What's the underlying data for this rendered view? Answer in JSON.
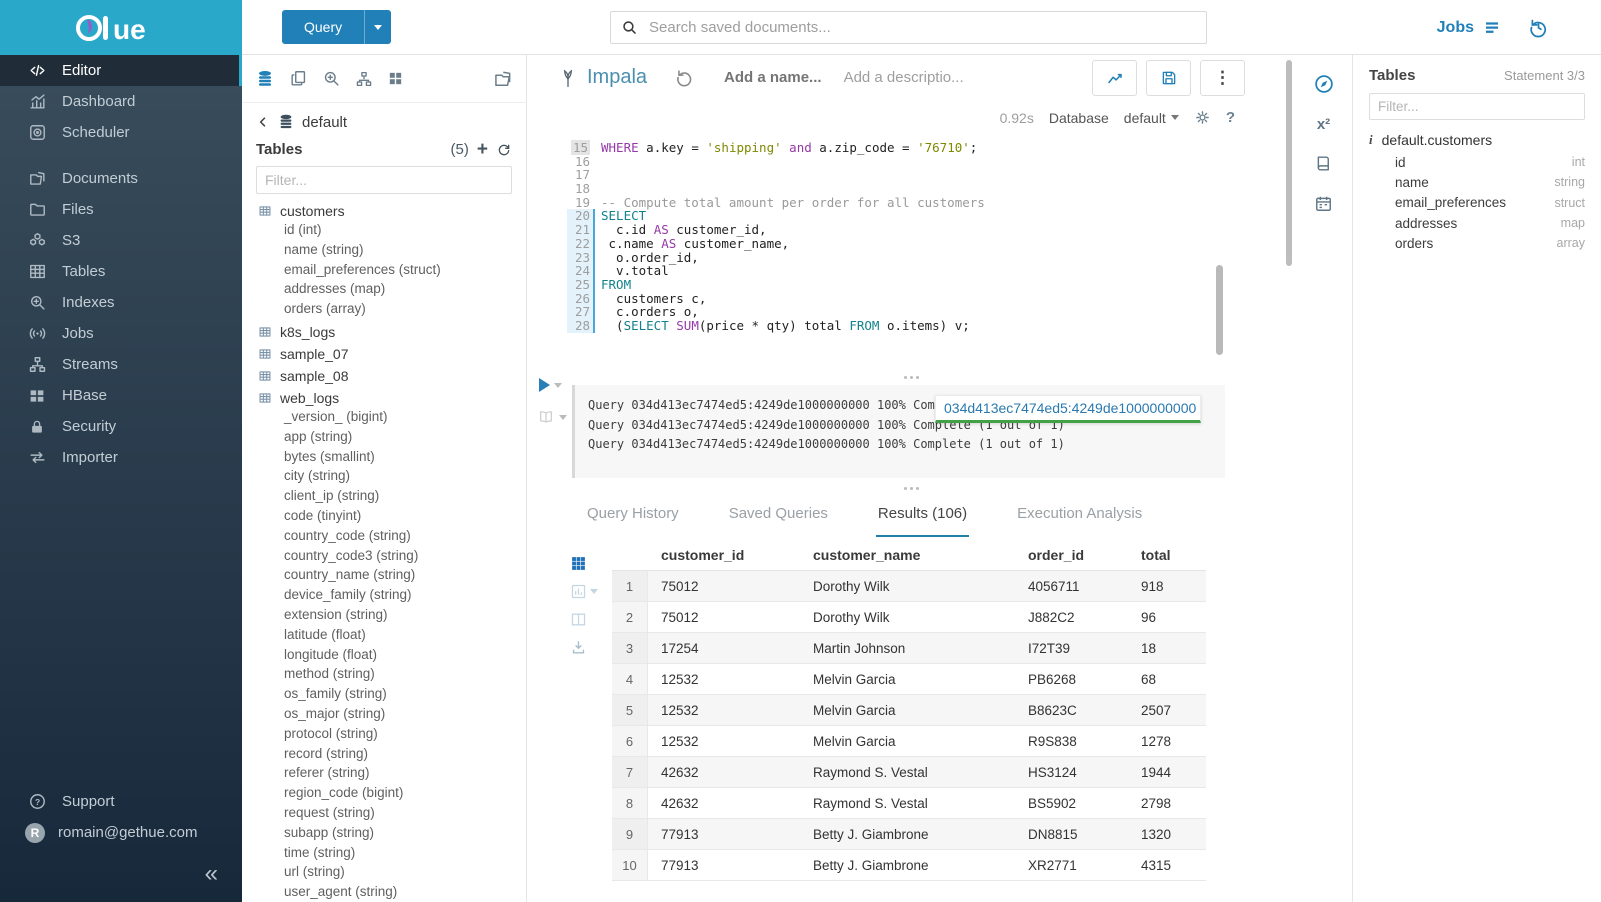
{
  "colors": {
    "accent": "#29a8c9",
    "blue": "#2180b8",
    "tab_underline": "#2180a8",
    "keyword_teal": "#12838c",
    "keyword_violet": "#9639a8",
    "string_olive": "#7d8a00",
    "popover_link": "#2a79af",
    "popover_underline": "#43a047"
  },
  "topbar": {
    "logo_text": "ue",
    "query_button": "Query",
    "search_placeholder": "Search saved documents...",
    "jobs_label": "Jobs"
  },
  "sidebar": {
    "items": [
      {
        "label": "Editor",
        "icon": "code-icon",
        "active": true
      },
      {
        "label": "Dashboard",
        "icon": "dashboard-icon"
      },
      {
        "label": "Scheduler",
        "icon": "scheduler-icon"
      },
      {
        "label": "Documents",
        "icon": "documents-icon",
        "gap": true
      },
      {
        "label": "Files",
        "icon": "files-icon"
      },
      {
        "label": "S3",
        "icon": "s3-icon"
      },
      {
        "label": "Tables",
        "icon": "tables-icon"
      },
      {
        "label": "Indexes",
        "icon": "indexes-icon"
      },
      {
        "label": "Jobs",
        "icon": "jobs-icon"
      },
      {
        "label": "Streams",
        "icon": "streams-icon"
      },
      {
        "label": "HBase",
        "icon": "hbase-icon"
      },
      {
        "label": "Security",
        "icon": "security-icon"
      },
      {
        "label": "Importer",
        "icon": "importer-icon"
      }
    ],
    "footer": [
      {
        "label": "Support",
        "icon": "help-icon"
      },
      {
        "label": "romain@gethue.com",
        "icon": "avatar",
        "avatar_letter": "R"
      }
    ],
    "collapse_glyph": "«"
  },
  "left_assist": {
    "database": "default",
    "tables_label": "Tables",
    "tables_count": "(5)",
    "filter_placeholder": "Filter...",
    "tables": [
      {
        "name": "customers",
        "columns": [
          "id (int)",
          "name (string)",
          "email_preferences (struct)",
          "addresses (map)",
          "orders (array)"
        ]
      },
      {
        "name": "k8s_logs",
        "columns": []
      },
      {
        "name": "sample_07",
        "columns": []
      },
      {
        "name": "sample_08",
        "columns": []
      },
      {
        "name": "web_logs",
        "columns": [
          "_version_ (bigint)",
          "app (string)",
          "bytes (smallint)",
          "city (string)",
          "client_ip (string)",
          "code (tinyint)",
          "country_code (string)",
          "country_code3 (string)",
          "country_name (string)",
          "device_family (string)",
          "extension (string)",
          "latitude (float)",
          "longitude (float)",
          "method (string)",
          "os_family (string)",
          "os_major (string)",
          "protocol (string)",
          "record (string)",
          "referer (string)",
          "region_code (bigint)",
          "request (string)",
          "subapp (string)",
          "time (string)",
          "url (string)",
          "user_agent (string)"
        ]
      }
    ]
  },
  "editor": {
    "engine": "Impala",
    "name_placeholder": "Add a name...",
    "description_placeholder": "Add a descriptio...",
    "execution_time": "0.92s",
    "database_label": "Database",
    "database_value": "default",
    "code": {
      "first_line": 15,
      "active_from": 20,
      "active_to": 28,
      "lines": [
        [
          [
            "k2",
            "WHERE"
          ],
          [
            "t",
            " a.key = "
          ],
          [
            "s",
            "'shipping'"
          ],
          [
            "t",
            " "
          ],
          [
            "k2",
            "and"
          ],
          [
            "t",
            " a.zip_code = "
          ],
          [
            "s",
            "'76710'"
          ],
          [
            "t",
            ";"
          ]
        ],
        [],
        [],
        [],
        [
          [
            "c",
            "-- Compute total amount per order for all customers"
          ]
        ],
        [
          [
            "k1",
            "SELECT"
          ]
        ],
        [
          [
            "t",
            "  c.id "
          ],
          [
            "k2",
            "AS"
          ],
          [
            "t",
            " customer_id,"
          ]
        ],
        [
          [
            "t",
            " c.name "
          ],
          [
            "k2",
            "AS"
          ],
          [
            "t",
            " customer_name,"
          ]
        ],
        [
          [
            "t",
            "  o.order_id,"
          ]
        ],
        [
          [
            "t",
            "  v.total"
          ]
        ],
        [
          [
            "k1",
            "FROM"
          ]
        ],
        [
          [
            "t",
            "  customers c,"
          ]
        ],
        [
          [
            "t",
            "  c.orders o,"
          ]
        ],
        [
          [
            "t",
            "  ("
          ],
          [
            "k1",
            "SELECT"
          ],
          [
            "t",
            " "
          ],
          [
            "k2",
            "SUM"
          ],
          [
            "t",
            "(price * qty) total "
          ],
          [
            "k1",
            "FROM"
          ],
          [
            "t",
            " o.items) v;"
          ]
        ]
      ]
    }
  },
  "logs": {
    "lines": [
      "Query 034d413ec7474ed5:4249de1000000000 100% Complete (1 out of 1)",
      "Query 034d413ec7474ed5:4249de1000000000 100% Complete (1 out of 1)",
      "Query 034d413ec7474ed5:4249de1000000000 100% Complete (1 out of 1)"
    ],
    "popover_text": "034d413ec7474ed5:4249de1000000000"
  },
  "tabs": [
    {
      "label": "Query History"
    },
    {
      "label": "Saved Queries"
    },
    {
      "label": "Results (106)",
      "active": true
    },
    {
      "label": "Execution Analysis"
    }
  ],
  "results": {
    "columns": [
      "customer_id",
      "customer_name",
      "order_id",
      "total"
    ],
    "rows": [
      [
        "75012",
        "Dorothy Wilk",
        "4056711",
        "918"
      ],
      [
        "75012",
        "Dorothy Wilk",
        "J882C2",
        "96"
      ],
      [
        "17254",
        "Martin Johnson",
        "I72T39",
        "18"
      ],
      [
        "12532",
        "Melvin Garcia",
        "PB6268",
        "68"
      ],
      [
        "12532",
        "Melvin Garcia",
        "B8623C",
        "2507"
      ],
      [
        "12532",
        "Melvin Garcia",
        "R9S838",
        "1278"
      ],
      [
        "42632",
        "Raymond S. Vestal",
        "HS3124",
        "1944"
      ],
      [
        "42632",
        "Raymond S. Vestal",
        "BS5902",
        "2798"
      ],
      [
        "77913",
        "Betty J. Giambrone",
        "DN8815",
        "1320"
      ],
      [
        "77913",
        "Betty J. Giambrone",
        "XR2771",
        "4315"
      ]
    ]
  },
  "right_assist": {
    "header": "Tables",
    "statement": "Statement 3/3",
    "filter_placeholder": "Filter...",
    "table": "default.customers",
    "info_glyph": "i",
    "columns": [
      {
        "name": "id",
        "type": "int"
      },
      {
        "name": "name",
        "type": "string"
      },
      {
        "name": "email_preferences",
        "type": "struct"
      },
      {
        "name": "addresses",
        "type": "map"
      },
      {
        "name": "orders",
        "type": "array"
      }
    ]
  }
}
